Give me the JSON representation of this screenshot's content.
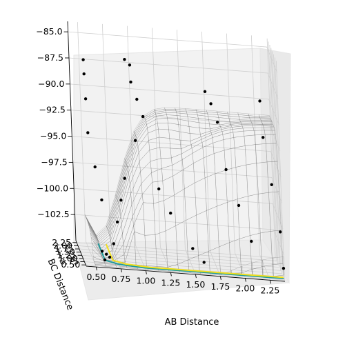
{
  "chart_data": {
    "type": "surface3d",
    "title": "",
    "xlabel": "AB Distance",
    "ylabel": "BC Distance",
    "zlabel": "",
    "x_ticks": [
      "0.50",
      "0.75",
      "1.00",
      "1.25",
      "1.50",
      "1.75",
      "2.00",
      "2.25"
    ],
    "y_ticks": [
      "0.50",
      "0.75",
      "1.00",
      "1.25",
      "1.50",
      "1.75",
      "2.00",
      "2.25"
    ],
    "z_ticks": [
      "−85.0",
      "−87.5",
      "−90.0",
      "−92.5",
      "−95.0",
      "−97.5",
      "−100.0",
      "−102.5"
    ],
    "xlim": [
      0.4,
      2.4
    ],
    "ylim": [
      0.4,
      2.4
    ],
    "zlim": [
      -105,
      -84
    ],
    "grid": true,
    "surface": {
      "plateau_value": -91.5,
      "minimum_value": -105,
      "colormap": "jet",
      "alpha": 0.5
    },
    "contour_levels": [
      {
        "color": "#1f9a9a",
        "note": "inner contour"
      },
      {
        "color": "#f2e01c",
        "note": "outer contour"
      }
    ],
    "scatter": {
      "color": "#000000",
      "points": [
        [
          0.6,
          0.6,
          -104.5
        ],
        [
          0.62,
          0.65,
          -104
        ],
        [
          0.58,
          0.7,
          -103.8
        ],
        [
          0.65,
          0.6,
          -104.2
        ],
        [
          0.7,
          0.7,
          -103
        ],
        [
          0.75,
          0.8,
          -101
        ],
        [
          0.8,
          0.9,
          -99
        ],
        [
          0.85,
          1.0,
          -97
        ],
        [
          0.5,
          1.5,
          -86.5
        ],
        [
          0.5,
          1.45,
          -87.8
        ],
        [
          0.5,
          1.3,
          -90
        ],
        [
          0.5,
          1.1,
          -93
        ],
        [
          0.55,
          0.9,
          -96
        ],
        [
          0.6,
          0.8,
          -99
        ],
        [
          0.95,
          2.2,
          -87
        ],
        [
          1.0,
          2.2,
          -87.5
        ],
        [
          1.0,
          2.1,
          -89
        ],
        [
          1.05,
          2.0,
          -90.5
        ],
        [
          1.1,
          1.9,
          -92
        ],
        [
          1.0,
          1.6,
          -94
        ],
        [
          1.2,
          1.2,
          -98
        ],
        [
          1.3,
          1.0,
          -100
        ],
        [
          1.5,
          0.8,
          -103
        ],
        [
          1.6,
          0.6,
          -104
        ],
        [
          1.75,
          2.2,
          -89.5
        ],
        [
          1.8,
          2.1,
          -90.5
        ],
        [
          1.85,
          1.9,
          -92
        ],
        [
          1.9,
          1.5,
          -96
        ],
        [
          2.0,
          1.2,
          -99
        ],
        [
          2.1,
          0.9,
          -102
        ],
        [
          2.3,
          2.2,
          -90
        ],
        [
          2.3,
          1.8,
          -93
        ],
        [
          2.35,
          1.4,
          -97
        ],
        [
          2.4,
          1.0,
          -101
        ],
        [
          2.4,
          0.6,
          -104
        ]
      ]
    }
  }
}
